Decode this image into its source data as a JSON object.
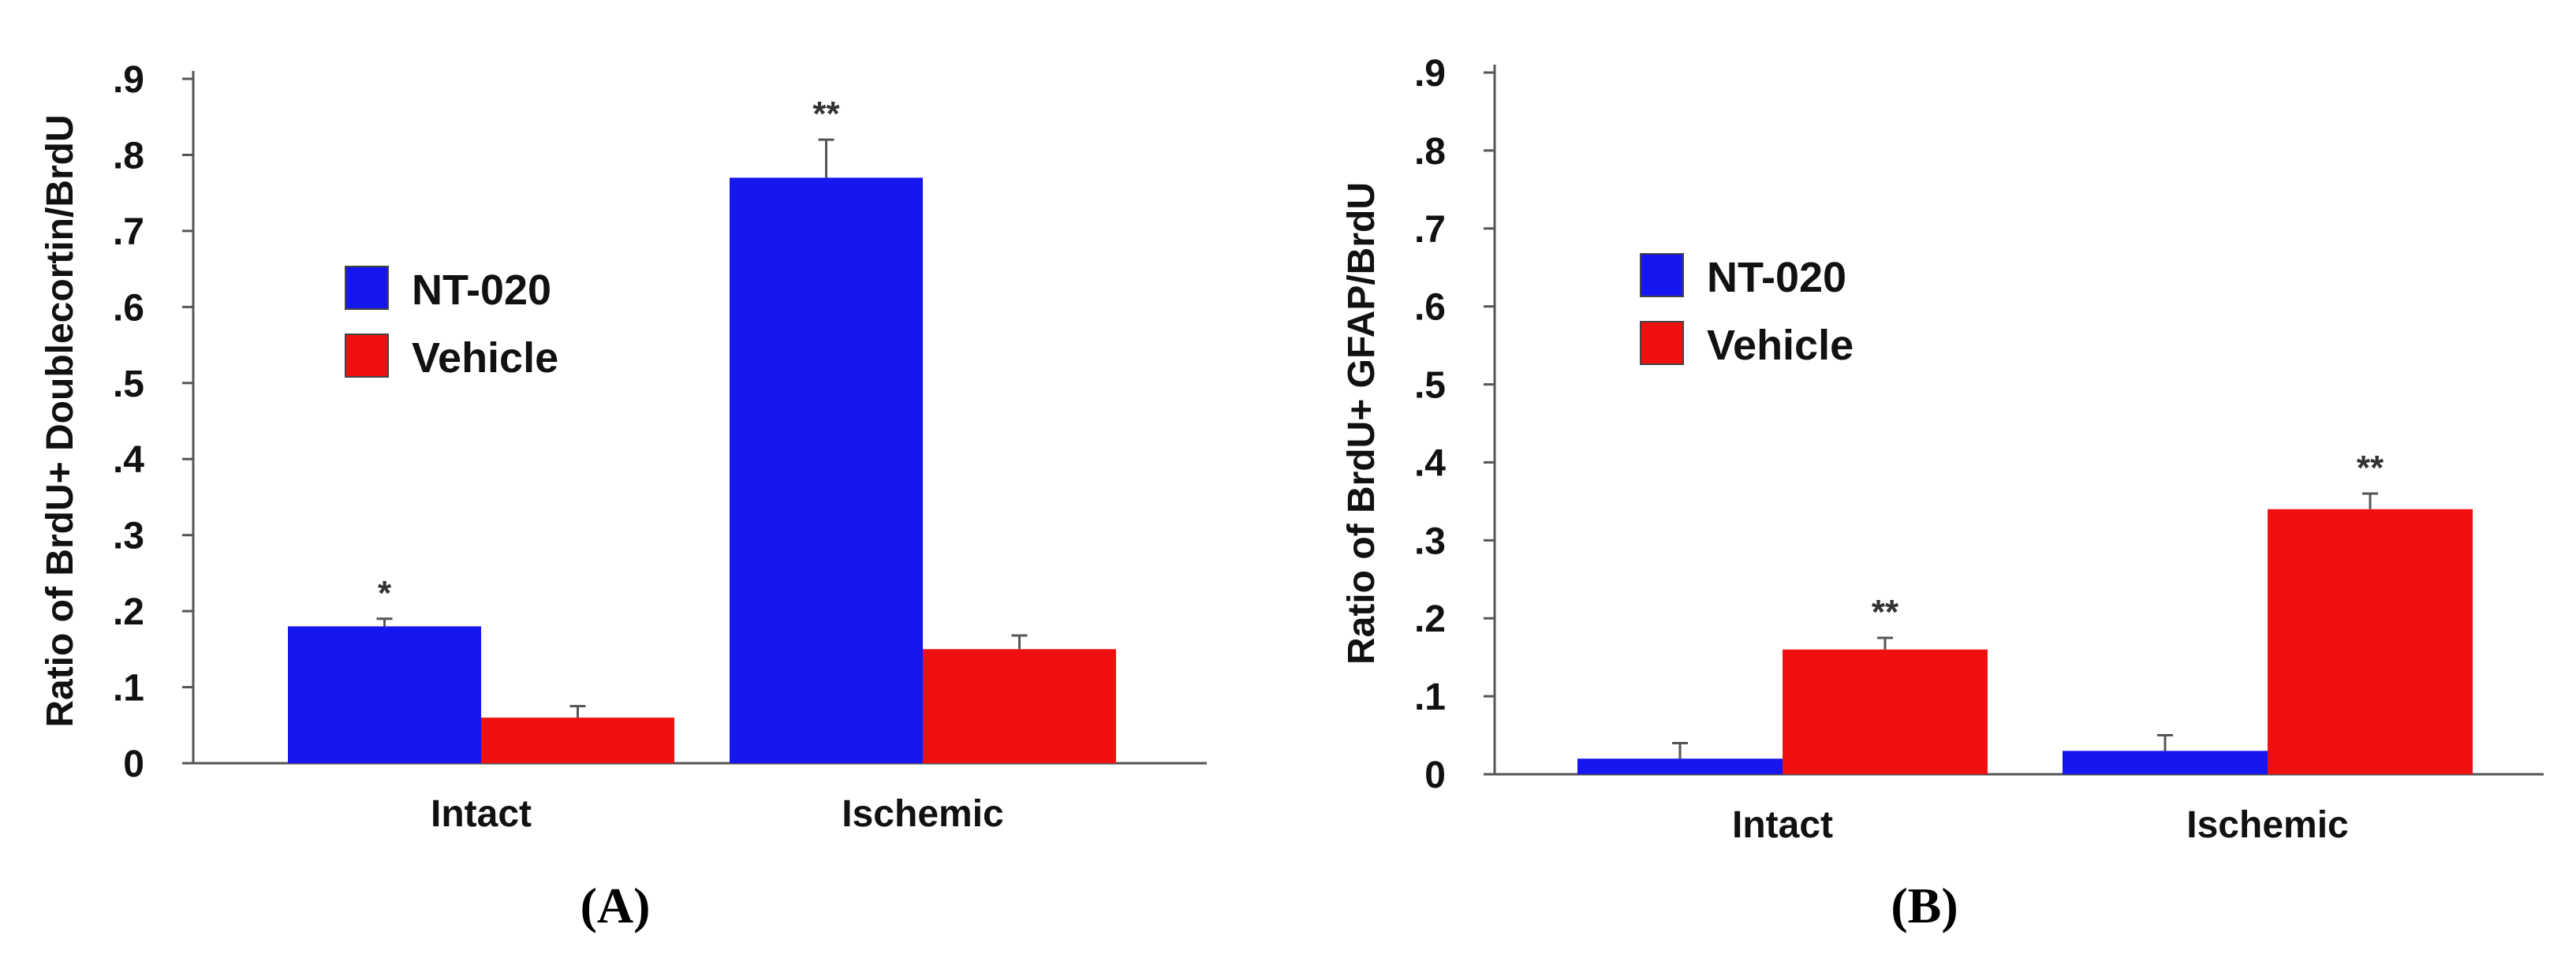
{
  "chart_data": [
    {
      "type": "bar",
      "panel_label": "(A)",
      "ylabel": "Ratio of BrdU+ Doublecortin/BrdU",
      "categories": [
        "Intact",
        "Ischemic"
      ],
      "ylim": [
        0,
        0.9
      ],
      "yticks": [
        {
          "value": 0,
          "label": "0"
        },
        {
          "value": 0.1,
          "label": ".1"
        },
        {
          "value": 0.2,
          "label": ".2"
        },
        {
          "value": 0.3,
          "label": ".3"
        },
        {
          "value": 0.4,
          "label": ".4"
        },
        {
          "value": 0.5,
          "label": ".5"
        },
        {
          "value": 0.6,
          "label": ".6"
        },
        {
          "value": 0.7,
          "label": ".7"
        },
        {
          "value": 0.8,
          "label": ".8"
        },
        {
          "value": 0.9,
          "label": ".9"
        }
      ],
      "grid": false,
      "legend_position": "upper-left",
      "series": [
        {
          "name": "NT-020",
          "color": "#1616f0",
          "values": [
            0.18,
            0.77
          ],
          "errors": [
            0.01,
            0.05
          ],
          "annotations": [
            "*",
            "**"
          ]
        },
        {
          "name": "Vehicle",
          "color": "#f01010",
          "values": [
            0.06,
            0.15
          ],
          "errors": [
            0.015,
            0.018
          ],
          "annotations": [
            "",
            ""
          ]
        }
      ]
    },
    {
      "type": "bar",
      "panel_label": "(B)",
      "ylabel": "Ratio of BrdU+ GFAP/BrdU",
      "categories": [
        "Intact",
        "Ischemic"
      ],
      "ylim": [
        0,
        0.9
      ],
      "yticks": [
        {
          "value": 0,
          "label": "0"
        },
        {
          "value": 0.1,
          "label": ".1"
        },
        {
          "value": 0.2,
          "label": ".2"
        },
        {
          "value": 0.3,
          "label": ".3"
        },
        {
          "value": 0.4,
          "label": ".4"
        },
        {
          "value": 0.5,
          "label": ".5"
        },
        {
          "value": 0.6,
          "label": ".6"
        },
        {
          "value": 0.7,
          "label": ".7"
        },
        {
          "value": 0.8,
          "label": ".8"
        },
        {
          "value": 0.9,
          "label": ".9"
        }
      ],
      "grid": false,
      "legend_position": "upper-left",
      "series": [
        {
          "name": "NT-020",
          "color": "#1616f0",
          "values": [
            0.02,
            0.03
          ],
          "errors": [
            0.02,
            0.02
          ],
          "annotations": [
            "",
            ""
          ]
        },
        {
          "name": "Vehicle",
          "color": "#f01010",
          "values": [
            0.16,
            0.34
          ],
          "errors": [
            0.015,
            0.02
          ],
          "annotations": [
            "**",
            "**"
          ]
        }
      ]
    }
  ]
}
